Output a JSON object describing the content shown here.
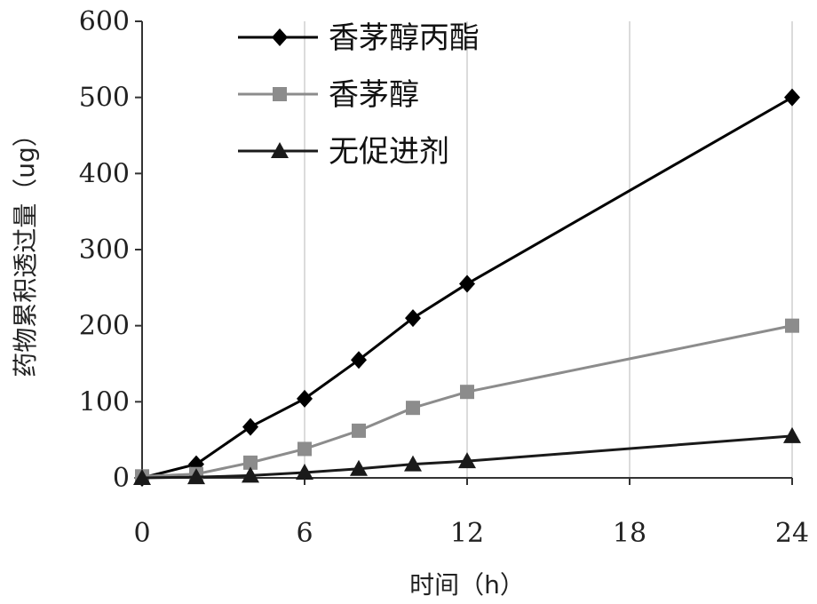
{
  "chart_data": {
    "type": "line",
    "xlabel": "时间（h）",
    "ylabel": "药物累积透过量（ug）",
    "xlim": [
      0,
      24
    ],
    "ylim": [
      0,
      600
    ],
    "xticks": [
      "0",
      "6",
      "12",
      "18",
      "24"
    ],
    "yticks": [
      "0",
      "100",
      "200",
      "300",
      "400",
      "500",
      "600"
    ],
    "grid": "vertical",
    "legend_position": "top-left",
    "series": [
      {
        "name": "香茅醇丙酯",
        "marker": "diamond",
        "color": "#000000",
        "x": [
          0,
          2,
          4,
          6,
          8,
          10,
          12,
          24
        ],
        "y": [
          0,
          18,
          67,
          104,
          155,
          210,
          255,
          500
        ]
      },
      {
        "name": "香茅醇",
        "marker": "square",
        "color": "#8c8c8c",
        "x": [
          0,
          2,
          4,
          6,
          8,
          10,
          12,
          24
        ],
        "y": [
          2,
          5,
          20,
          38,
          62,
          92,
          113,
          200
        ]
      },
      {
        "name": "无促进剂",
        "marker": "triangle",
        "color": "#1a1a1a",
        "x": [
          0,
          2,
          4,
          6,
          8,
          10,
          12,
          24
        ],
        "y": [
          0,
          1,
          3,
          7,
          12,
          18,
          22,
          55
        ]
      }
    ]
  }
}
